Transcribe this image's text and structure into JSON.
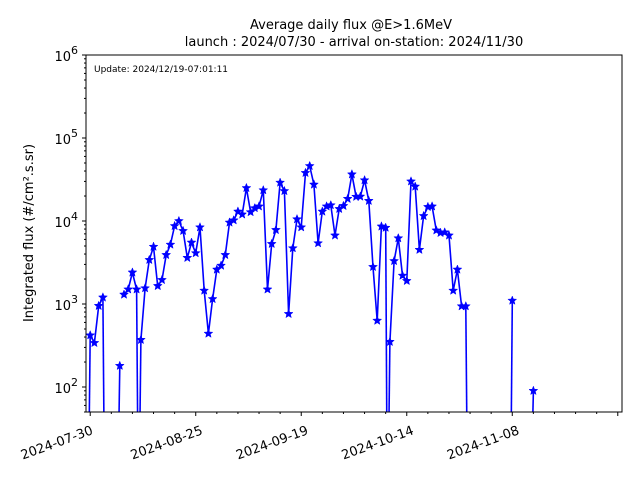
{
  "chart_data": {
    "type": "line",
    "title_line1": "Average daily flux @E>1.6MeV",
    "title_line2": "launch : 2024/07/30 - arrival on-station: 2024/11/30",
    "annotation": "Update: 2024/12/19-07:01:11",
    "ylabel": "Integrated flux (#/cm².s.sr)",
    "xlabel": "",
    "y_scale": "log",
    "ylim": [
      50,
      1000000
    ],
    "xlim": [
      "2024-07-29",
      "2024-12-03"
    ],
    "grid": false,
    "color": "#0000ff",
    "marker": "star",
    "x_ticks": [
      "2024-07-30",
      "2024-08-25",
      "2024-09-19",
      "2024-10-14",
      "2024-11-08"
    ],
    "y_ticks": [
      {
        "value": 100,
        "base": "10",
        "exp": "2"
      },
      {
        "value": 1000,
        "base": "10",
        "exp": "3"
      },
      {
        "value": 10000,
        "base": "10",
        "exp": "4"
      },
      {
        "value": 100000,
        "base": "10",
        "exp": "5"
      },
      {
        "value": 1000000,
        "base": "10",
        "exp": "6"
      }
    ],
    "segments": [
      [
        [
          "2024-07-30",
          420
        ],
        [
          "2024-07-31",
          340
        ],
        [
          "2024-08-01",
          950
        ],
        [
          "2024-08-02",
          1200
        ]
      ],
      [
        [
          "2024-08-06",
          180
        ]
      ],
      [
        [
          "2024-08-07",
          1300
        ],
        [
          "2024-08-08",
          1500
        ],
        [
          "2024-08-09",
          2400
        ],
        [
          "2024-08-10",
          1500
        ]
      ],
      [
        [
          "2024-08-11",
          370
        ],
        [
          "2024-08-12",
          1550
        ],
        [
          "2024-08-13",
          3400
        ],
        [
          "2024-08-14",
          4900
        ],
        [
          "2024-08-15",
          1650
        ],
        [
          "2024-08-16",
          1950
        ],
        [
          "2024-08-17",
          3900
        ],
        [
          "2024-08-18",
          5200
        ],
        [
          "2024-08-19",
          8700
        ],
        [
          "2024-08-20",
          10000
        ],
        [
          "2024-08-21",
          7600
        ],
        [
          "2024-08-22",
          3600
        ],
        [
          "2024-08-23",
          5500
        ],
        [
          "2024-08-24",
          4100
        ],
        [
          "2024-08-25",
          8400
        ],
        [
          "2024-08-26",
          1450
        ],
        [
          "2024-08-27",
          440
        ],
        [
          "2024-08-28",
          1150
        ],
        [
          "2024-08-29",
          2600
        ],
        [
          "2024-08-30",
          2900
        ],
        [
          "2024-08-31",
          3900
        ],
        [
          "2024-09-01",
          9600
        ],
        [
          "2024-09-02",
          10200
        ],
        [
          "2024-09-03",
          13000
        ],
        [
          "2024-09-04",
          12000
        ],
        [
          "2024-09-05",
          25000
        ],
        [
          "2024-09-06",
          12800
        ],
        [
          "2024-09-07",
          14300
        ],
        [
          "2024-09-08",
          15000
        ],
        [
          "2024-09-09",
          23500
        ],
        [
          "2024-09-10",
          1500
        ],
        [
          "2024-09-11",
          5300
        ],
        [
          "2024-09-12",
          7800
        ],
        [
          "2024-09-13",
          29000
        ],
        [
          "2024-09-14",
          23000
        ],
        [
          "2024-09-15",
          760
        ],
        [
          "2024-09-16",
          4700
        ],
        [
          "2024-09-17",
          10500
        ],
        [
          "2024-09-18",
          8400
        ],
        [
          "2024-09-19",
          38000
        ],
        [
          "2024-09-20",
          46000
        ],
        [
          "2024-09-21",
          27500
        ],
        [
          "2024-09-22",
          5400
        ],
        [
          "2024-09-23",
          13000
        ],
        [
          "2024-09-24",
          15000
        ],
        [
          "2024-09-25",
          15500
        ],
        [
          "2024-09-26",
          6700
        ],
        [
          "2024-09-27",
          14000
        ],
        [
          "2024-09-28",
          15200
        ],
        [
          "2024-09-29",
          18500
        ],
        [
          "2024-09-30",
          36500
        ],
        [
          "2024-10-01",
          19600
        ],
        [
          "2024-10-02",
          19700
        ],
        [
          "2024-10-03",
          31000
        ],
        [
          "2024-10-04",
          17500
        ],
        [
          "2024-10-05",
          2800
        ],
        [
          "2024-10-06",
          630
        ],
        [
          "2024-10-07",
          8600
        ],
        [
          "2024-10-08",
          8300
        ]
      ],
      [
        [
          "2024-10-09",
          350
        ],
        [
          "2024-10-10",
          3300
        ],
        [
          "2024-10-11",
          6200
        ],
        [
          "2024-10-12",
          2200
        ],
        [
          "2024-10-13",
          1900
        ],
        [
          "2024-10-14",
          30000
        ],
        [
          "2024-10-15",
          26000
        ],
        [
          "2024-10-16",
          4500
        ],
        [
          "2024-10-17",
          11500
        ],
        [
          "2024-10-18",
          14800
        ],
        [
          "2024-10-19",
          15000
        ],
        [
          "2024-10-20",
          7700
        ],
        [
          "2024-10-21",
          7200
        ],
        [
          "2024-10-22",
          7300
        ],
        [
          "2024-10-23",
          6700
        ],
        [
          "2024-10-24",
          1450
        ],
        [
          "2024-10-25",
          2600
        ],
        [
          "2024-10-26",
          940
        ],
        [
          "2024-10-27",
          940
        ]
      ],
      [
        [
          "2024-11-07",
          1100
        ]
      ],
      [
        [
          "2024-11-12",
          90
        ]
      ]
    ],
    "drops": [
      [
        "2024-07-30",
        420,
        "before"
      ],
      [
        "2024-08-02",
        1200,
        "after"
      ],
      [
        "2024-08-06",
        180,
        "before"
      ],
      [
        "2024-08-10",
        1500,
        "after"
      ],
      [
        "2024-08-11",
        370,
        "before"
      ],
      [
        "2024-10-08",
        8300,
        "after"
      ],
      [
        "2024-10-09",
        350,
        "before"
      ],
      [
        "2024-10-27",
        940,
        "after"
      ],
      [
        "2024-11-07",
        1100,
        "before"
      ],
      [
        "2024-11-12",
        90,
        "before"
      ]
    ]
  }
}
